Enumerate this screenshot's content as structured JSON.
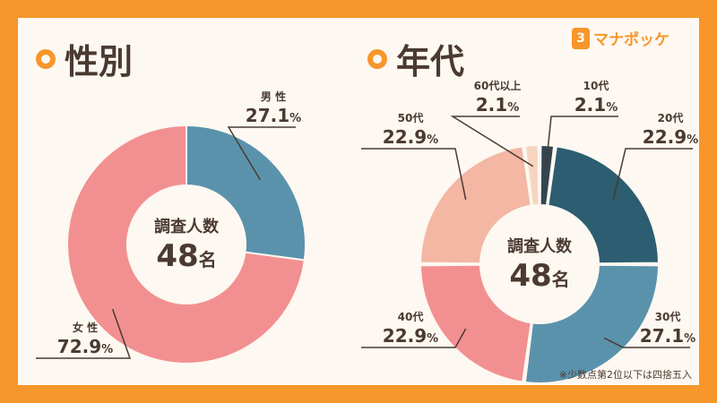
{
  "logo": {
    "mark": "3",
    "text": "マナポッケ"
  },
  "footnote": "※少数点第2位以下は四捨五入",
  "chart_data": [
    {
      "type": "pie",
      "title": "性別",
      "center_label": "調査人数",
      "center_value": "48",
      "center_unit": "名",
      "slices": [
        {
          "label": "男 性",
          "value": 27.1,
          "color": "#5a92ac"
        },
        {
          "label": "女 性",
          "value": 72.9,
          "color": "#f29091"
        }
      ]
    },
    {
      "type": "pie",
      "title": "年代",
      "center_label": "調査人数",
      "center_value": "48",
      "center_unit": "名",
      "slices": [
        {
          "label": "10代",
          "value": 2.1,
          "color": "#344550"
        },
        {
          "label": "20代",
          "value": 22.9,
          "color": "#2c5d70"
        },
        {
          "label": "30代",
          "value": 27.1,
          "color": "#5a92ac"
        },
        {
          "label": "40代",
          "value": 22.9,
          "color": "#f29091"
        },
        {
          "label": "50代",
          "value": 22.9,
          "color": "#f3b7a4"
        },
        {
          "label": "60代以上",
          "value": 2.1,
          "color": "#f6d5c0"
        }
      ]
    }
  ]
}
